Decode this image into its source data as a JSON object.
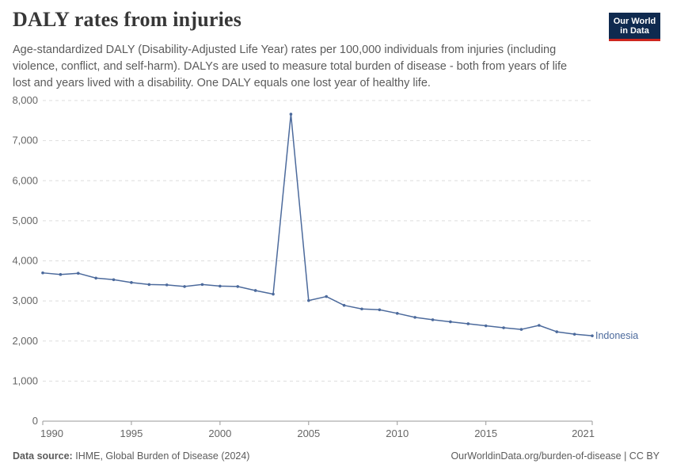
{
  "header": {
    "title": "DALY rates from injuries",
    "subtitle": "Age-standardized DALY (Disability-Adjusted Life Year) rates per 100,000 individuals from injuries (including violence, conflict, and self-harm). DALYs are used to measure total burden of disease - both from years of life lost and years lived with a disability. One DALY equals one lost year of healthy life.",
    "logo_line1": "Our World",
    "logo_line2": "in Data"
  },
  "footer": {
    "source_label": "Data source:",
    "source_text": "IHME, Global Burden of Disease (2024)",
    "url_text": "OurWorldinData.org/burden-of-disease | CC BY"
  },
  "colors": {
    "series": "#4c6a9c",
    "grid": "#dddddd",
    "axis": "#666666"
  },
  "chart_data": {
    "type": "line",
    "title": "DALY rates from injuries",
    "xlabel": "",
    "ylabel": "",
    "xlim": [
      1990,
      2021
    ],
    "ylim": [
      0,
      8000
    ],
    "y_ticks": [
      0,
      1000,
      2000,
      3000,
      4000,
      5000,
      6000,
      7000,
      8000
    ],
    "y_tick_labels": [
      "0",
      "1,000",
      "2,000",
      "3,000",
      "4,000",
      "5,000",
      "6,000",
      "7,000",
      "8,000"
    ],
    "x_ticks": [
      1990,
      1995,
      2000,
      2005,
      2010,
      2015,
      2021
    ],
    "x_tick_labels": [
      "1990",
      "1995",
      "2000",
      "2005",
      "2010",
      "2015",
      "2021"
    ],
    "grid": true,
    "series": [
      {
        "name": "Indonesia",
        "x": [
          1990,
          1991,
          1992,
          1993,
          1994,
          1995,
          1996,
          1997,
          1998,
          1999,
          2000,
          2001,
          2002,
          2003,
          2004,
          2005,
          2006,
          2007,
          2008,
          2009,
          2010,
          2011,
          2012,
          2013,
          2014,
          2015,
          2016,
          2017,
          2018,
          2019,
          2020,
          2021
        ],
        "values": [
          3700,
          3660,
          3690,
          3570,
          3530,
          3460,
          3410,
          3400,
          3360,
          3410,
          3370,
          3360,
          3260,
          3170,
          7660,
          3010,
          3110,
          2890,
          2800,
          2780,
          2690,
          2590,
          2530,
          2480,
          2430,
          2380,
          2330,
          2290,
          2390,
          2230,
          2170,
          2130
        ]
      }
    ]
  }
}
